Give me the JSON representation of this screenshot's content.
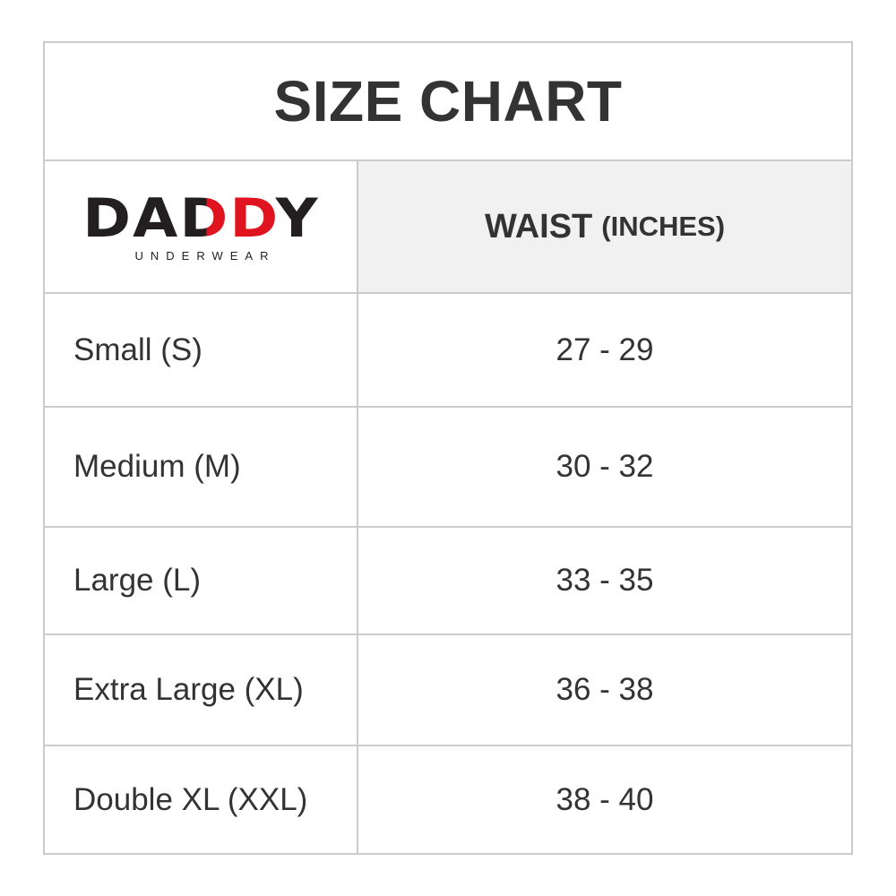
{
  "title": "SIZE CHART",
  "logo": {
    "brand": "DADDY",
    "brand_first": "DA",
    "brand_red": "DD",
    "brand_last": "Y",
    "tagline": "UNDERWEAR"
  },
  "header": {
    "measure": "WAIST",
    "unit": "(INCHES)"
  },
  "rows": [
    {
      "size": "Small (S)",
      "waist": "27 - 29"
    },
    {
      "size": "Medium (M)",
      "waist": "30 - 32"
    },
    {
      "size": "Large (L)",
      "waist": "33 - 35"
    },
    {
      "size": "Extra Large (XL)",
      "waist": "36 - 38"
    },
    {
      "size": "Double XL (XXL)",
      "waist": "38 - 40"
    }
  ],
  "colors": {
    "border": "#cccccc",
    "header_bg": "#f1f1f1",
    "text": "#333333",
    "logo_red": "#e0141e"
  }
}
